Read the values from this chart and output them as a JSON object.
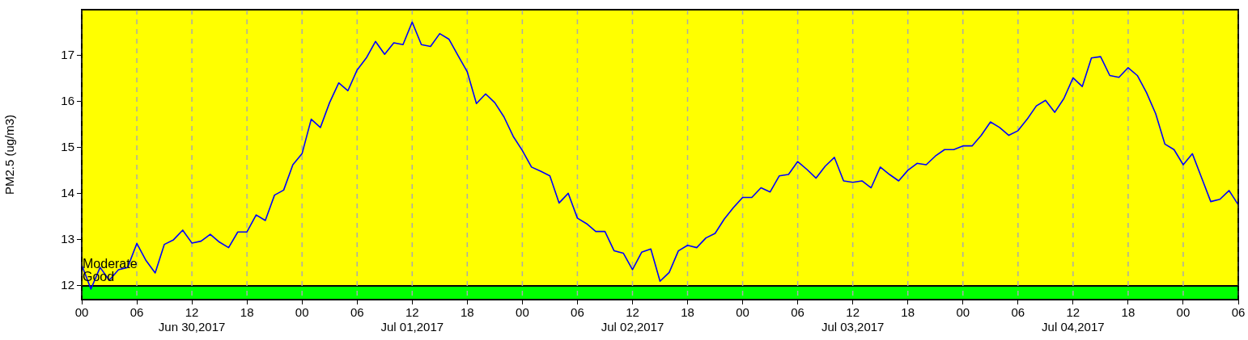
{
  "chart_data": {
    "type": "line",
    "ylabel": "PM2.5 (ug/m3)",
    "x": [
      "2017-06-30T00:00",
      "2017-06-30T01:00",
      "2017-06-30T02:00",
      "2017-06-30T03:00",
      "2017-06-30T04:00",
      "2017-06-30T05:00",
      "2017-06-30T06:00",
      "2017-06-30T07:00",
      "2017-06-30T08:00",
      "2017-06-30T09:00",
      "2017-06-30T10:00",
      "2017-06-30T11:00",
      "2017-06-30T12:00",
      "2017-06-30T13:00",
      "2017-06-30T14:00",
      "2017-06-30T15:00",
      "2017-06-30T16:00",
      "2017-06-30T17:00",
      "2017-06-30T18:00",
      "2017-06-30T19:00",
      "2017-06-30T20:00",
      "2017-06-30T21:00",
      "2017-06-30T22:00",
      "2017-06-30T23:00",
      "2017-07-01T00:00",
      "2017-07-01T01:00",
      "2017-07-01T02:00",
      "2017-07-01T03:00",
      "2017-07-01T04:00",
      "2017-07-01T05:00",
      "2017-07-01T06:00",
      "2017-07-01T07:00",
      "2017-07-01T08:00",
      "2017-07-01T09:00",
      "2017-07-01T10:00",
      "2017-07-01T11:00",
      "2017-07-01T12:00",
      "2017-07-01T13:00",
      "2017-07-01T14:00",
      "2017-07-01T15:00",
      "2017-07-01T16:00",
      "2017-07-01T17:00",
      "2017-07-01T18:00",
      "2017-07-01T19:00",
      "2017-07-01T20:00",
      "2017-07-01T21:00",
      "2017-07-01T22:00",
      "2017-07-01T23:00",
      "2017-07-02T00:00",
      "2017-07-02T01:00",
      "2017-07-02T02:00",
      "2017-07-02T03:00",
      "2017-07-02T04:00",
      "2017-07-02T05:00",
      "2017-07-02T06:00",
      "2017-07-02T07:00",
      "2017-07-02T08:00",
      "2017-07-02T09:00",
      "2017-07-02T10:00",
      "2017-07-02T11:00",
      "2017-07-02T12:00",
      "2017-07-02T13:00",
      "2017-07-02T14:00",
      "2017-07-02T15:00",
      "2017-07-02T16:00",
      "2017-07-02T17:00",
      "2017-07-02T18:00",
      "2017-07-02T19:00",
      "2017-07-02T20:00",
      "2017-07-02T21:00",
      "2017-07-02T22:00",
      "2017-07-02T23:00",
      "2017-07-03T00:00",
      "2017-07-03T01:00",
      "2017-07-03T02:00",
      "2017-07-03T03:00",
      "2017-07-03T04:00",
      "2017-07-03T05:00",
      "2017-07-03T06:00",
      "2017-07-03T07:00",
      "2017-07-03T08:00",
      "2017-07-03T09:00",
      "2017-07-03T10:00",
      "2017-07-03T11:00",
      "2017-07-03T12:00",
      "2017-07-03T13:00",
      "2017-07-03T14:00",
      "2017-07-03T15:00",
      "2017-07-03T16:00",
      "2017-07-03T17:00",
      "2017-07-03T18:00",
      "2017-07-03T19:00",
      "2017-07-03T20:00",
      "2017-07-03T21:00",
      "2017-07-03T22:00",
      "2017-07-03T23:00",
      "2017-07-04T00:00",
      "2017-07-04T01:00",
      "2017-07-04T02:00",
      "2017-07-04T03:00",
      "2017-07-04T04:00",
      "2017-07-04T05:00",
      "2017-07-04T06:00",
      "2017-07-04T07:00",
      "2017-07-04T08:00",
      "2017-07-04T09:00",
      "2017-07-04T10:00",
      "2017-07-04T11:00",
      "2017-07-04T12:00",
      "2017-07-04T13:00",
      "2017-07-04T14:00",
      "2017-07-04T15:00",
      "2017-07-04T16:00",
      "2017-07-04T17:00",
      "2017-07-04T18:00",
      "2017-07-04T19:00",
      "2017-07-04T20:00",
      "2017-07-04T21:00",
      "2017-07-04T22:00",
      "2017-07-04T23:00",
      "2017-07-05T00:00",
      "2017-07-05T01:00",
      "2017-07-05T02:00",
      "2017-07-05T03:00",
      "2017-07-05T04:00",
      "2017-07-05T05:00",
      "2017-07-05T06:00"
    ],
    "series": [
      {
        "color": "#0000ff",
        "values": [
          12.45,
          11.93,
          12.4,
          12.12,
          12.35,
          12.4,
          12.92,
          12.55,
          12.28,
          12.9,
          13.0,
          13.21,
          12.93,
          12.97,
          13.12,
          12.95,
          12.83,
          13.17,
          13.17,
          13.54,
          13.42,
          13.97,
          14.08,
          14.63,
          14.87,
          15.62,
          15.44,
          15.98,
          16.41,
          16.24,
          16.69,
          16.95,
          17.31,
          17.03,
          17.28,
          17.24,
          17.73,
          17.24,
          17.2,
          17.48,
          17.36,
          17.0,
          16.65,
          15.96,
          16.17,
          15.98,
          15.67,
          15.25,
          14.94,
          14.58,
          14.49,
          14.39,
          13.8,
          14.01,
          13.47,
          13.35,
          13.18,
          13.18,
          12.76,
          12.71,
          12.35,
          12.73,
          12.8,
          12.1,
          12.29,
          12.76,
          12.88,
          12.83,
          13.04,
          13.14,
          13.45,
          13.7,
          13.92,
          13.92,
          14.13,
          14.04,
          14.39,
          14.42,
          14.7,
          14.53,
          14.34,
          14.6,
          14.79,
          14.28,
          14.25,
          14.28,
          14.13,
          14.58,
          14.42,
          14.28,
          14.51,
          14.66,
          14.63,
          14.82,
          14.96,
          14.96,
          15.04,
          15.04,
          15.27,
          15.56,
          15.44,
          15.27,
          15.37,
          15.62,
          15.91,
          16.03,
          15.77,
          16.07,
          16.52,
          16.33,
          16.95,
          16.98,
          16.57,
          16.53,
          16.74,
          16.57,
          16.2,
          15.74,
          15.08,
          14.96,
          14.63,
          14.87,
          14.35,
          13.83,
          13.88,
          14.07,
          13.76
        ]
      }
    ],
    "xlim": [
      "2017-06-30T00:00",
      "2017-07-05T06:00"
    ],
    "xticks": [
      {
        "value": "2017-06-30T00:00",
        "label": "00"
      },
      {
        "value": "2017-06-30T06:00",
        "label": "06"
      },
      {
        "value": "2017-06-30T12:00",
        "label": "12\nJun 30,2017"
      },
      {
        "value": "2017-06-30T18:00",
        "label": "18"
      },
      {
        "value": "2017-07-01T00:00",
        "label": "00"
      },
      {
        "value": "2017-07-01T06:00",
        "label": "06"
      },
      {
        "value": "2017-07-01T12:00",
        "label": "12\nJul 01,2017"
      },
      {
        "value": "2017-07-01T18:00",
        "label": "18"
      },
      {
        "value": "2017-07-02T00:00",
        "label": "00"
      },
      {
        "value": "2017-07-02T06:00",
        "label": "06"
      },
      {
        "value": "2017-07-02T12:00",
        "label": "12\nJul 02,2017"
      },
      {
        "value": "2017-07-02T18:00",
        "label": "18"
      },
      {
        "value": "2017-07-03T00:00",
        "label": "00"
      },
      {
        "value": "2017-07-03T06:00",
        "label": "06"
      },
      {
        "value": "2017-07-03T12:00",
        "label": "12\nJul 03,2017"
      },
      {
        "value": "2017-07-03T18:00",
        "label": "18"
      },
      {
        "value": "2017-07-04T00:00",
        "label": "00"
      },
      {
        "value": "2017-07-04T06:00",
        "label": "06"
      },
      {
        "value": "2017-07-04T12:00",
        "label": "12\nJul 04,2017"
      },
      {
        "value": "2017-07-04T18:00",
        "label": "18"
      },
      {
        "value": "2017-07-05T00:00",
        "label": "00"
      },
      {
        "value": "2017-07-05T06:00",
        "label": "06"
      }
    ],
    "ylim": [
      11.7,
      18
    ],
    "yticks": [
      12,
      13,
      14,
      15,
      16,
      17
    ],
    "bands": [
      {
        "axis": "y",
        "from": 11.7,
        "to": 12,
        "label": "Good",
        "color": "#00ff00"
      },
      {
        "axis": "y",
        "from": 12,
        "to": 18,
        "label": "Moderate",
        "color": "#ffff00"
      }
    ],
    "grid": "x",
    "line_style": "solid"
  }
}
